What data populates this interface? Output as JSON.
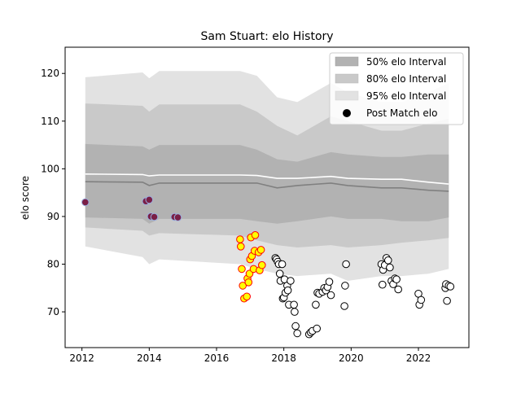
{
  "chart_data": {
    "type": "scatter",
    "title": "Sam Stuart: elo History",
    "xlabel": "",
    "ylabel": "elo score",
    "xlim": [
      2011.5,
      2023.5
    ],
    "ylim": [
      62.5,
      125.5
    ],
    "xticks": [
      2012,
      2014,
      2016,
      2018,
      2020,
      2022
    ],
    "yticks": [
      70,
      80,
      90,
      100,
      110,
      120
    ],
    "legend": {
      "position": "top-right",
      "entries": [
        "50% elo Interval",
        "80% elo Interval",
        "95% elo Interval",
        "Post Match elo"
      ]
    },
    "colors": {
      "band95": "#e2e2e2",
      "band80": "#c9c9c9",
      "band50": "#b2b2b2",
      "median_line": "#808080",
      "mean_line": "#ffffff",
      "white_point": "#ffffff",
      "yellow_point": "#ffff00",
      "yellow_edge": "#ff0000",
      "dark_point": "#7a1f46",
      "dark_edge": "#9bb0e0"
    },
    "bands": {
      "x": [
        2012.1,
        2013.8,
        2014.0,
        2014.3,
        2016.7,
        2017.2,
        2017.8,
        2018.4,
        2019.4,
        2019.9,
        2020.9,
        2021.5,
        2022.3,
        2022.9
      ],
      "p97_5": [
        119.2,
        120.2,
        119.0,
        120.5,
        120.5,
        119.5,
        115.0,
        114.0,
        118.0,
        116.0,
        114.0,
        114.0,
        116.0,
        118.0
      ],
      "p90": [
        113.7,
        113.2,
        112.0,
        113.5,
        113.5,
        112.0,
        109.0,
        107.0,
        111.0,
        110.0,
        108.0,
        108.0,
        109.5,
        110.5
      ],
      "p75": [
        105.2,
        104.7,
        104.0,
        105.0,
        105.0,
        104.0,
        102.0,
        101.5,
        103.5,
        103.0,
        102.5,
        102.5,
        103.0,
        103.0
      ],
      "p50": [
        97.3,
        97.2,
        96.5,
        97.0,
        97.0,
        97.0,
        96.0,
        96.5,
        97.0,
        96.5,
        96.0,
        96.0,
        95.5,
        95.3
      ],
      "p25": [
        89.8,
        89.5,
        88.5,
        89.5,
        89.5,
        89.0,
        88.5,
        89.0,
        90.0,
        89.5,
        89.5,
        89.0,
        89.0,
        89.8
      ],
      "p10": [
        87.7,
        87.0,
        86.0,
        86.5,
        86.0,
        85.0,
        84.0,
        83.5,
        84.0,
        83.5,
        84.0,
        84.5,
        85.0,
        85.5
      ],
      "p2_5": [
        83.7,
        81.5,
        80.0,
        81.0,
        80.0,
        79.0,
        78.0,
        77.5,
        78.0,
        76.5,
        77.5,
        77.5,
        78.0,
        79.0
      ],
      "mean": [
        98.9,
        98.8,
        98.5,
        98.7,
        98.7,
        98.6,
        98.0,
        98.0,
        98.4,
        98.0,
        97.8,
        97.8,
        97.2,
        96.8
      ]
    },
    "series": [
      {
        "style": "dark",
        "points": [
          [
            2012.1,
            93.0
          ],
          [
            2013.9,
            93.2
          ],
          [
            2014.0,
            93.5
          ],
          [
            2014.05,
            90.0
          ],
          [
            2014.15,
            89.9
          ],
          [
            2014.75,
            89.9
          ],
          [
            2014.85,
            89.8
          ]
        ]
      },
      {
        "style": "yellow",
        "points": [
          [
            2016.7,
            85.2
          ],
          [
            2016.72,
            83.7
          ],
          [
            2016.75,
            79.0
          ],
          [
            2016.78,
            75.5
          ],
          [
            2016.82,
            72.8
          ],
          [
            2016.9,
            73.2
          ],
          [
            2016.92,
            77.0
          ],
          [
            2016.95,
            76.2
          ],
          [
            2016.98,
            78.0
          ],
          [
            2017.0,
            81.0
          ],
          [
            2017.02,
            85.6
          ],
          [
            2017.05,
            81.7
          ],
          [
            2017.1,
            79.0
          ],
          [
            2017.13,
            82.8
          ],
          [
            2017.15,
            86.1
          ],
          [
            2017.25,
            82.5
          ],
          [
            2017.28,
            78.7
          ],
          [
            2017.32,
            83.0
          ],
          [
            2017.35,
            79.8
          ]
        ]
      },
      {
        "style": "white",
        "points": [
          [
            2017.75,
            81.3
          ],
          [
            2017.78,
            81.0
          ],
          [
            2017.82,
            80.5
          ],
          [
            2017.85,
            80.0
          ],
          [
            2017.88,
            78.0
          ],
          [
            2017.9,
            76.5
          ],
          [
            2017.95,
            80.0
          ],
          [
            2017.97,
            72.8
          ],
          [
            2018.0,
            73.0
          ],
          [
            2018.02,
            76.8
          ],
          [
            2018.05,
            74.0
          ],
          [
            2018.1,
            75.5
          ],
          [
            2018.12,
            74.5
          ],
          [
            2018.15,
            71.5
          ],
          [
            2018.2,
            76.5
          ],
          [
            2018.3,
            71.5
          ],
          [
            2018.32,
            70.0
          ],
          [
            2018.35,
            67.0
          ],
          [
            2018.4,
            65.5
          ],
          [
            2018.75,
            65.3
          ],
          [
            2018.8,
            65.7
          ],
          [
            2018.85,
            66.0
          ],
          [
            2018.95,
            71.5
          ],
          [
            2018.98,
            66.5
          ],
          [
            2019.0,
            74.0
          ],
          [
            2019.05,
            73.8
          ],
          [
            2019.15,
            74.2
          ],
          [
            2019.2,
            75.0
          ],
          [
            2019.25,
            74.5
          ],
          [
            2019.3,
            75.2
          ],
          [
            2019.35,
            76.3
          ],
          [
            2019.4,
            73.5
          ],
          [
            2019.8,
            71.2
          ],
          [
            2019.82,
            75.5
          ],
          [
            2019.85,
            80.0
          ],
          [
            2020.9,
            80.0
          ],
          [
            2020.93,
            75.7
          ],
          [
            2020.95,
            78.8
          ],
          [
            2021.0,
            79.8
          ],
          [
            2021.05,
            81.3
          ],
          [
            2021.1,
            80.8
          ],
          [
            2021.15,
            79.3
          ],
          [
            2021.2,
            76.5
          ],
          [
            2021.25,
            75.8
          ],
          [
            2021.3,
            77.0
          ],
          [
            2021.35,
            76.8
          ],
          [
            2021.4,
            74.7
          ],
          [
            2022.0,
            73.8
          ],
          [
            2022.03,
            71.5
          ],
          [
            2022.08,
            72.5
          ],
          [
            2022.8,
            75.0
          ],
          [
            2022.82,
            75.8
          ],
          [
            2022.85,
            72.3
          ],
          [
            2022.9,
            75.5
          ],
          [
            2022.95,
            75.3
          ]
        ]
      }
    ]
  }
}
